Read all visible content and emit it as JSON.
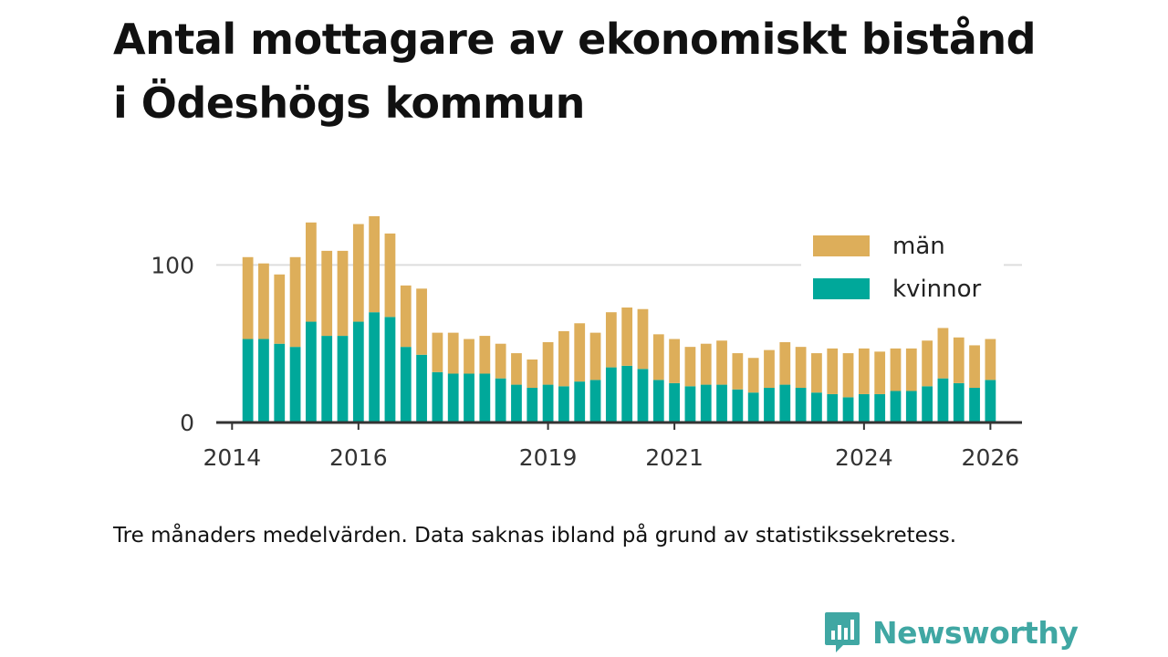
{
  "title": {
    "line1": "Antal mottagare av ekonomiskt bistånd",
    "line2": "i Ödeshögs kommun"
  },
  "note": "Tre månaders medelvärden. Data saknas ibland på grund av statistikssekretess.",
  "brand": {
    "name": "Newsworthy",
    "color": "#40a7a3"
  },
  "colors": {
    "man": "#ddae5a",
    "kvinnor": "#00a89a",
    "grid": "#dddddd",
    "axis": "#333333"
  },
  "chart_data": {
    "type": "bar",
    "stacked": true,
    "title": "Antal mottagare av ekonomiskt bistånd i Ödeshögs kommun",
    "xlabel": "",
    "ylabel": "",
    "ylim": [
      0,
      135
    ],
    "yticks": [
      0,
      100
    ],
    "xlim": [
      2013.75,
      2026.5
    ],
    "xticks": [
      2014,
      2016,
      2019,
      2021,
      2024,
      2026
    ],
    "grid": true,
    "legend_position": "top-right",
    "x": [
      2014.25,
      2014.5,
      2014.75,
      2015.0,
      2015.25,
      2015.5,
      2015.75,
      2016.0,
      2016.25,
      2016.5,
      2016.75,
      2017.0,
      2017.25,
      2017.5,
      2017.75,
      2018.0,
      2018.25,
      2018.5,
      2018.75,
      2019.0,
      2019.25,
      2019.5,
      2019.75,
      2020.0,
      2020.25,
      2020.5,
      2020.75,
      2021.0,
      2021.25,
      2021.5,
      2021.75,
      2022.0,
      2022.25,
      2022.5,
      2022.75,
      2023.0,
      2023.25,
      2023.5,
      2023.75,
      2024.0,
      2024.25,
      2024.5,
      2024.75,
      2025.0,
      2025.25,
      2025.5,
      2025.75,
      2026.0
    ],
    "series": [
      {
        "name": "kvinnor",
        "values": [
          53,
          53,
          50,
          48,
          64,
          55,
          55,
          64,
          70,
          67,
          48,
          43,
          32,
          31,
          31,
          31,
          28,
          24,
          22,
          24,
          23,
          26,
          27,
          35,
          36,
          34,
          27,
          25,
          23,
          24,
          24,
          21,
          19,
          22,
          24,
          22,
          19,
          18,
          16,
          18,
          18,
          20,
          20,
          23,
          28,
          25,
          22,
          27
        ]
      },
      {
        "name": "män",
        "values": [
          52,
          48,
          44,
          57,
          63,
          54,
          54,
          62,
          61,
          53,
          39,
          42,
          25,
          26,
          22,
          24,
          22,
          20,
          18,
          27,
          35,
          37,
          30,
          35,
          37,
          38,
          29,
          28,
          25,
          26,
          28,
          23,
          22,
          24,
          27,
          26,
          25,
          29,
          28,
          29,
          27,
          27,
          27,
          29,
          32,
          29,
          27,
          26
        ]
      }
    ],
    "legend": [
      "män",
      "kvinnor"
    ]
  }
}
